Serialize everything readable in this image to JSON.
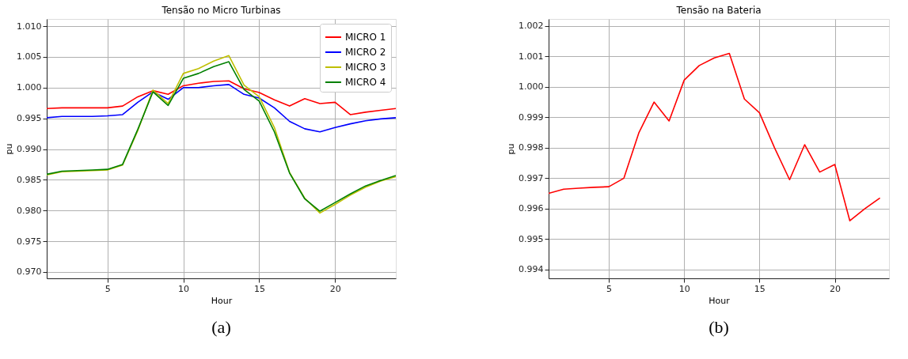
{
  "chart_data": [
    {
      "type": "line",
      "title": "Tensão no Micro Turbinas",
      "xlabel": "Hour",
      "ylabel": "pu",
      "x": [
        1,
        2,
        3,
        4,
        5,
        6,
        7,
        8,
        9,
        10,
        11,
        12,
        13,
        14,
        15,
        16,
        17,
        18,
        19,
        20,
        21,
        22,
        23,
        24
      ],
      "series": [
        {
          "name": "MICRO 1",
          "color": "#ff0000",
          "values": [
            0.9966,
            0.9967,
            0.9967,
            0.9967,
            0.9967,
            0.997,
            0.9985,
            0.9995,
            0.9989,
            1.0003,
            1.0007,
            1.001,
            1.0011,
            0.9998,
            0.9992,
            0.998,
            0.997,
            0.9982,
            0.9974,
            0.9976,
            0.9956,
            0.996,
            0.9963,
            0.9966
          ]
        },
        {
          "name": "MICRO 2",
          "color": "#0000ff",
          "values": [
            0.9951,
            0.9953,
            0.9953,
            0.9953,
            0.9954,
            0.9956,
            0.9976,
            0.9993,
            0.9981,
            1.0,
            1.0,
            1.0003,
            1.0005,
            0.9989,
            0.9983,
            0.9967,
            0.9945,
            0.9933,
            0.9928,
            0.9935,
            0.9941,
            0.9946,
            0.9949,
            0.9951
          ]
        },
        {
          "name": "MICRO 3",
          "color": "#bfbf00",
          "values": [
            0.9858,
            0.9863,
            0.9864,
            0.9865,
            0.9866,
            0.9874,
            0.993,
            0.9996,
            0.9974,
            1.0023,
            1.0031,
            1.0043,
            1.0052,
            1.0004,
            0.9985,
            0.9935,
            0.9862,
            0.982,
            0.9796,
            0.981,
            0.9825,
            0.9838,
            0.9848,
            0.9855
          ]
        },
        {
          "name": "MICRO 4",
          "color": "#008000",
          "values": [
            0.9859,
            0.9864,
            0.9865,
            0.9866,
            0.9867,
            0.9875,
            0.9932,
            0.9993,
            0.9971,
            1.0015,
            1.0023,
            1.0034,
            1.0042,
            0.9997,
            0.9978,
            0.9928,
            0.9861,
            0.9819,
            0.9799,
            0.9813,
            0.9827,
            0.984,
            0.9849,
            0.9857
          ]
        }
      ],
      "xlim": [
        1,
        24
      ],
      "xticks": [
        5,
        10,
        15,
        20
      ],
      "ylim": [
        0.96897,
        1.01116
      ],
      "yticks": [
        {
          "value": 0.97,
          "label": "0.970"
        },
        {
          "value": 0.975,
          "label": "0.975"
        },
        {
          "value": 0.98,
          "label": "0.980"
        },
        {
          "value": 0.985,
          "label": "0.985"
        },
        {
          "value": 0.99,
          "label": "0.990"
        },
        {
          "value": 0.995,
          "label": "0.995"
        },
        {
          "value": 1.0,
          "label": "1.000"
        },
        {
          "value": 1.005,
          "label": "1.005"
        },
        {
          "value": 1.01,
          "label": "1.010"
        }
      ],
      "grid": true,
      "legend": "top right",
      "annotations": [
        "(a)"
      ]
    },
    {
      "type": "line",
      "title": "Tensão na Bateria",
      "xlabel": "Hour",
      "ylabel": "pu",
      "x": [
        1,
        2,
        3,
        4,
        5,
        6,
        7,
        8,
        9,
        10,
        11,
        12,
        13,
        14,
        15,
        16,
        17,
        18,
        19,
        20,
        21,
        22,
        23
      ],
      "series": [
        {
          "color": "#ff0000",
          "values": [
            0.9965,
            0.99664,
            0.99667,
            0.9967,
            0.99672,
            0.997,
            0.9985,
            0.9995,
            0.99888,
            1.00022,
            1.0007,
            1.00095,
            1.0011,
            0.9996,
            0.99915,
            0.998,
            0.99695,
            0.9981,
            0.9972,
            0.99745,
            0.9956,
            0.996,
            0.99635
          ]
        }
      ],
      "xlim": [
        1,
        23.6
      ],
      "xticks": [
        5,
        10,
        15,
        20
      ],
      "ylim": [
        0.99371,
        1.00223
      ],
      "yticks": [
        {
          "value": 0.994,
          "label": "0.994"
        },
        {
          "value": 0.995,
          "label": "0.995"
        },
        {
          "value": 0.996,
          "label": "0.996"
        },
        {
          "value": 0.997,
          "label": "0.997"
        },
        {
          "value": 0.998,
          "label": "0.998"
        },
        {
          "value": 0.999,
          "label": "0.999"
        },
        {
          "value": 1.0,
          "label": "1.000"
        },
        {
          "value": 1.001,
          "label": "1.001"
        },
        {
          "value": 1.002,
          "label": "1.002"
        }
      ],
      "grid": true,
      "annotations": [
        "(b)"
      ]
    }
  ]
}
